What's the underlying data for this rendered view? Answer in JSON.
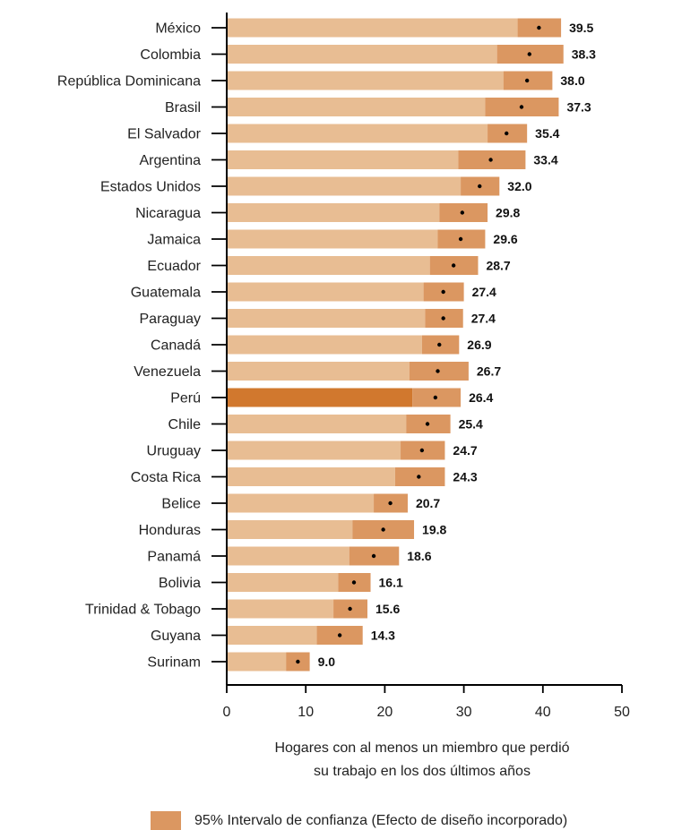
{
  "chart_data": {
    "type": "bar",
    "orientation": "horizontal",
    "categories": [
      "México",
      "Colombia",
      "República Dominicana",
      "Brasil",
      "El Salvador",
      "Argentina",
      "Estados Unidos",
      "Nicaragua",
      "Jamaica",
      "Ecuador",
      "Guatemala",
      "Paraguay",
      "Canadá",
      "Venezuela",
      "Perú",
      "Chile",
      "Uruguay",
      "Costa Rica",
      "Belice",
      "Honduras",
      "Panamá",
      "Bolivia",
      "Trinidad & Tobago",
      "Guyana",
      "Surinam"
    ],
    "values": [
      39.5,
      38.3,
      38.0,
      37.3,
      35.4,
      33.4,
      32.0,
      29.8,
      29.6,
      28.7,
      27.4,
      27.4,
      26.9,
      26.7,
      26.4,
      25.4,
      24.7,
      24.3,
      20.7,
      19.8,
      18.6,
      16.1,
      15.6,
      14.3,
      9.0
    ],
    "value_labels": [
      "39.5",
      "38.3",
      "38.0",
      "37.3",
      "35.4",
      "33.4",
      "32.0",
      "29.8",
      "29.6",
      "28.7",
      "27.4",
      "27.4",
      "26.9",
      "26.7",
      "26.4",
      "25.4",
      "24.7",
      "24.3",
      "20.7",
      "19.8",
      "18.6",
      "16.1",
      "15.6",
      "14.3",
      "9.0"
    ],
    "ci_lower": [
      36.8,
      34.2,
      35.0,
      32.7,
      33.0,
      29.3,
      29.6,
      26.9,
      26.7,
      25.7,
      24.9,
      25.1,
      24.7,
      23.1,
      23.5,
      22.7,
      22.0,
      21.3,
      18.6,
      15.9,
      15.5,
      14.1,
      13.5,
      11.4,
      7.5
    ],
    "ci_upper": [
      42.3,
      42.6,
      41.2,
      42.0,
      38.0,
      37.8,
      34.5,
      33.0,
      32.7,
      31.8,
      30.0,
      29.9,
      29.4,
      30.6,
      29.6,
      28.3,
      27.6,
      27.6,
      22.9,
      23.7,
      21.8,
      18.2,
      17.8,
      17.2,
      10.5
    ],
    "highlight": "Perú",
    "xlim": [
      0,
      50
    ],
    "xticks": [
      "0",
      "10",
      "20",
      "30",
      "40",
      "50"
    ],
    "xlabel_lines": [
      "Hogares con al menos un miembro que perdió",
      "su trabajo en los dos últimos años"
    ],
    "legend": {
      "label": "95% Intervalo de confianza (Efecto de diseño incorporado)",
      "placement": "bottom-right"
    },
    "colors": {
      "bar": "#E8BD93",
      "ci": "#DB9761",
      "highlight": "#D1782E",
      "point": "#000000",
      "axis": "#000000"
    },
    "grid": false
  }
}
